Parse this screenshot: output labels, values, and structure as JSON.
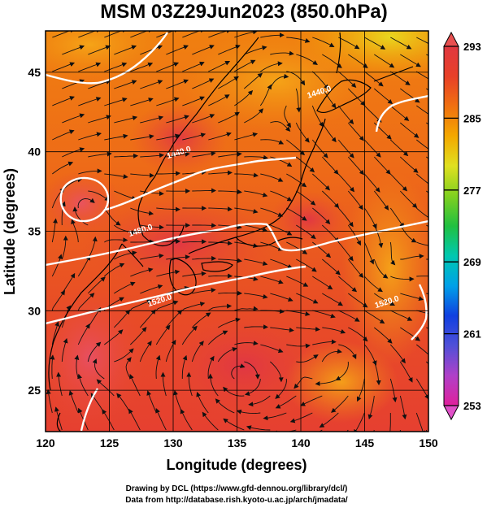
{
  "chart_data": {
    "type": "heatmap",
    "title": "MSM 03Z29Jun2023 (850.0hPa)",
    "xlabel": "Longitude (degrees)",
    "ylabel": "Latitude  (degrees)",
    "xlim": [
      120,
      150
    ],
    "ylim": [
      22.4,
      47.6
    ],
    "x_ticks": [
      "120",
      "125",
      "130",
      "135",
      "140",
      "145",
      "150"
    ],
    "x_tick_values": [
      120,
      125,
      130,
      135,
      140,
      145,
      150
    ],
    "y_ticks": [
      "25",
      "30",
      "35",
      "40",
      "45"
    ],
    "y_tick_values": [
      25,
      30,
      35,
      40,
      45
    ],
    "grid": true,
    "colorbar": {
      "ticks": [
        "293",
        "285",
        "277",
        "269",
        "261",
        "253"
      ],
      "tick_values": [
        293,
        285,
        277,
        269,
        261,
        253
      ],
      "min": 253,
      "max": 293,
      "colors": [
        "#e0209c",
        "#b040c8",
        "#5050d8",
        "#1040e0",
        "#00a0e8",
        "#00c8b0",
        "#20c040",
        "#80d020",
        "#e0e020",
        "#f4a800",
        "#f07010",
        "#e84028",
        "#e03840"
      ]
    },
    "contours": [
      {
        "label": "1440.0",
        "lon": 141.5,
        "lat": 43.6
      },
      {
        "label": "1440.0",
        "lon": 130.5,
        "lat": 39.8
      },
      {
        "label": "1480.0",
        "lon": 127.5,
        "lat": 34.9
      },
      {
        "label": "1520.0",
        "lon": 129.0,
        "lat": 30.5
      },
      {
        "label": "1520.0",
        "lon": 146.8,
        "lat": 30.4
      }
    ]
  },
  "credits": {
    "line1": "Drawing by DCL (https://www.gfd-dennou.org/library/dcl/)",
    "line2": "Data from http://database.rish.kyoto-u.ac.jp/arch/jmadata/"
  }
}
